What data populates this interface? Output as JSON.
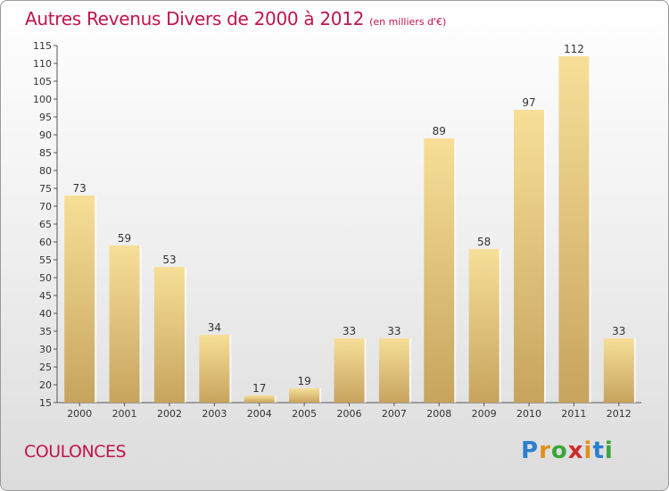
{
  "chart_data": {
    "type": "bar",
    "title": "Autres Revenus Divers de 2000 à 2012",
    "unit": "(en milliers d'€)",
    "categories": [
      "2000",
      "2001",
      "2002",
      "2003",
      "2004",
      "2005",
      "2006",
      "2007",
      "2008",
      "2009",
      "2010",
      "2011",
      "2012"
    ],
    "values": [
      73,
      59,
      53,
      34,
      17,
      19,
      33,
      33,
      89,
      58,
      97,
      112,
      33
    ],
    "ylim": [
      15,
      115
    ],
    "ytick_step": 5,
    "grid": false,
    "bar_color": "#e6c97f"
  },
  "footer": {
    "commune": "COULONCES",
    "logo": [
      "P",
      "r",
      "o",
      "x",
      "i",
      "t",
      "i"
    ]
  }
}
